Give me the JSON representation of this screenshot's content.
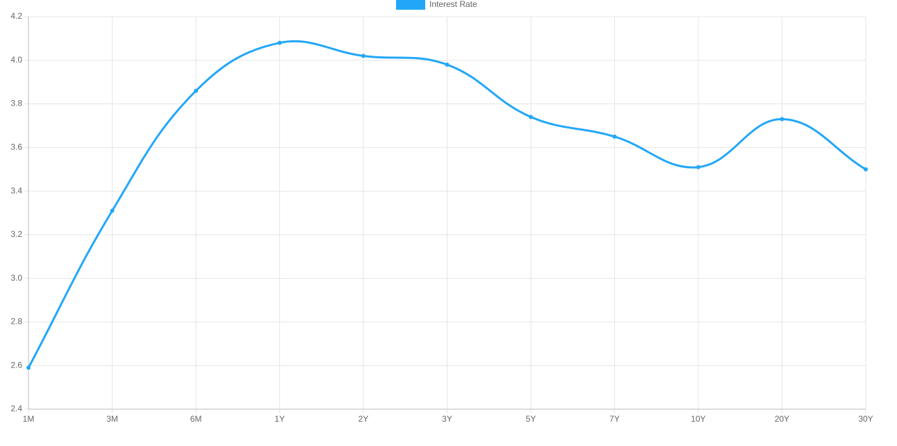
{
  "chart_data": {
    "type": "line",
    "categories": [
      "1M",
      "3M",
      "6M",
      "1Y",
      "2Y",
      "3Y",
      "5Y",
      "7Y",
      "10Y",
      "20Y",
      "30Y"
    ],
    "series": [
      {
        "name": "Interest Rate",
        "color": "#22a7f8",
        "values": [
          2.59,
          3.31,
          3.86,
          4.08,
          4.02,
          3.98,
          3.74,
          3.65,
          3.51,
          3.73,
          3.5
        ]
      }
    ],
    "ylim": [
      2.4,
      4.2
    ],
    "yticks": [
      2.4,
      2.6,
      2.8,
      {
        "value": 3,
        "label": "3.0"
      },
      3.2,
      3.4,
      3.6,
      3.8,
      {
        "value": 4,
        "label": "4.0"
      },
      4.2
    ],
    "grid": true,
    "legend": "top"
  }
}
